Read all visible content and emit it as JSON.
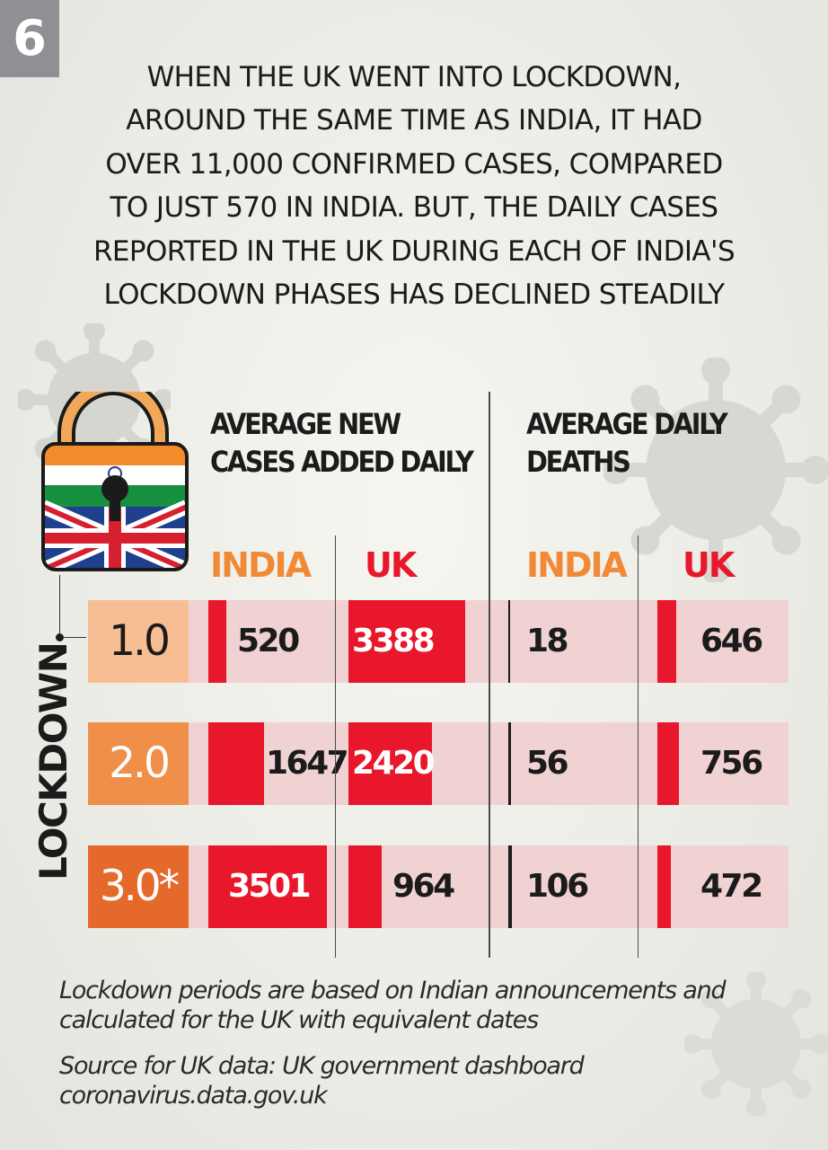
{
  "badge": "6",
  "headline": [
    "WHEN THE UK WENT INTO LOCKDOWN,",
    "AROUND THE SAME TIME AS INDIA, IT HAD",
    "OVER 11,000 CONFIRMED CASES, COMPARED",
    "TO JUST 570 IN INDIA. BUT, THE DAILY CASES",
    "REPORTED IN THE UK DURING EACH OF INDIA'S",
    "LOCKDOWN PHASES HAS DECLINED STEADILY"
  ],
  "sections": {
    "cases": [
      "AVERAGE NEW",
      "CASES ADDED DAILY"
    ],
    "deaths": [
      "AVERAGE DAILY",
      "DEATHS"
    ]
  },
  "columns": {
    "india": "INDIA",
    "uk": "UK"
  },
  "side_label": "LOCKDOWN",
  "colors": {
    "india": "#f08a37",
    "uk": "#e8172b",
    "row_bg": "#f1d2d2",
    "phase_1": "#f7bd93",
    "phase_2": "#f08f4a",
    "phase_3": "#e6692c"
  },
  "icons": [
    "virus-icon",
    "padlock-india-uk-flag-icon"
  ],
  "chart_data": {
    "type": "table",
    "categories": [
      "1.0",
      "2.0",
      "3.0*"
    ],
    "series": [
      {
        "group": "AVERAGE NEW CASES ADDED DAILY",
        "name": "INDIA",
        "values": [
          520,
          1647,
          3501
        ]
      },
      {
        "group": "AVERAGE NEW CASES ADDED DAILY",
        "name": "UK",
        "values": [
          3388,
          2420,
          964
        ]
      },
      {
        "group": "AVERAGE DAILY DEATHS",
        "name": "INDIA",
        "values": [
          18,
          56,
          106
        ]
      },
      {
        "group": "AVERAGE DAILY DEATHS",
        "name": "UK",
        "values": [
          646,
          756,
          472
        ]
      }
    ]
  },
  "footnotes": [
    "Lockdown periods are based on Indian announcements and",
    "calculated for the UK with equivalent dates"
  ],
  "source": [
    "Source for UK data: UK government dashboard",
    "coronavirus.data.gov.uk"
  ]
}
